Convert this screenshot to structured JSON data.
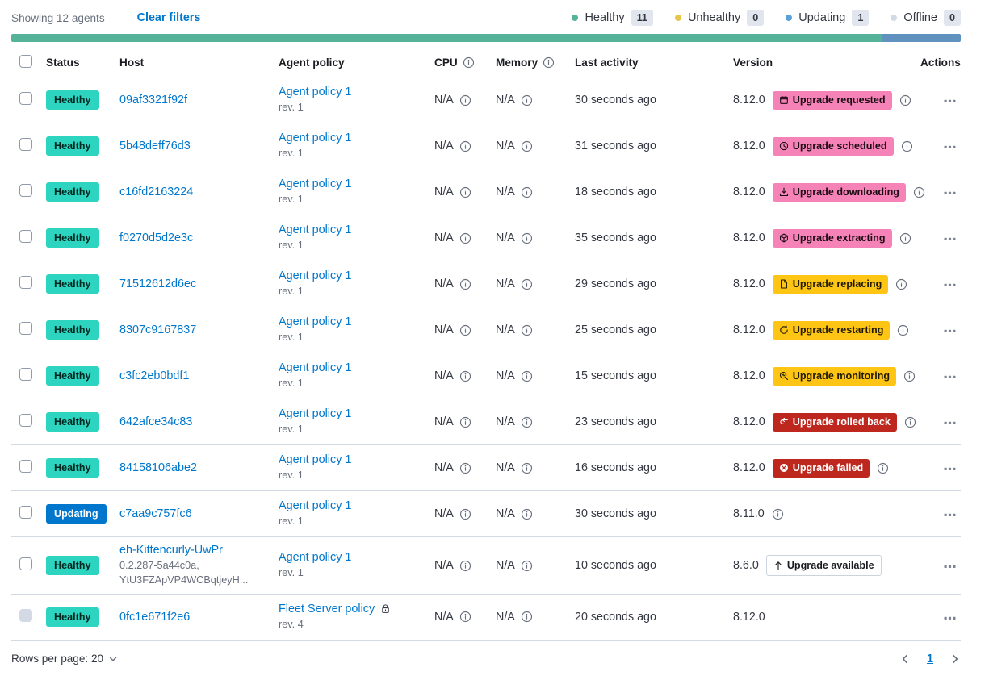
{
  "header": {
    "showing_text": "Showing 12 agents",
    "clear_filters_label": "Clear filters",
    "legend": [
      {
        "label": "Healthy",
        "count": "11",
        "color": "#54B399"
      },
      {
        "label": "Unhealthy",
        "count": "0",
        "color": "#E7C44C"
      },
      {
        "label": "Updating",
        "count": "1",
        "color": "#5BA0D8"
      },
      {
        "label": "Offline",
        "count": "0",
        "color": "#D3DAE6"
      }
    ]
  },
  "status_bar": {
    "segments": [
      {
        "name": "healthy",
        "color": "#54B399",
        "percent": 91.7
      },
      {
        "name": "updating",
        "color": "#6092C0",
        "percent": 8.3
      }
    ]
  },
  "table": {
    "columns": [
      "Status",
      "Host",
      "Agent policy",
      "CPU",
      "Memory",
      "Last activity",
      "Version",
      "Actions"
    ],
    "rows": [
      {
        "status": "Healthy",
        "status_type": "healthy",
        "host": "09af3321f92f",
        "policy": "Agent policy 1",
        "revision": "rev. 1",
        "cpu": "N/A",
        "memory": "N/A",
        "last_activity": "30 seconds ago",
        "version": "8.12.0",
        "upgrade_badge": {
          "label": "Upgrade requested",
          "style": "pink",
          "icon": "calendar"
        },
        "version_info": true
      },
      {
        "status": "Healthy",
        "status_type": "healthy",
        "host": "5b48deff76d3",
        "policy": "Agent policy 1",
        "revision": "rev. 1",
        "cpu": "N/A",
        "memory": "N/A",
        "last_activity": "31 seconds ago",
        "version": "8.12.0",
        "upgrade_badge": {
          "label": "Upgrade scheduled",
          "style": "pink",
          "icon": "clock"
        },
        "version_info": true
      },
      {
        "status": "Healthy",
        "status_type": "healthy",
        "host": "c16fd2163224",
        "policy": "Agent policy 1",
        "revision": "rev. 1",
        "cpu": "N/A",
        "memory": "N/A",
        "last_activity": "18 seconds ago",
        "version": "8.12.0",
        "upgrade_badge": {
          "label": "Upgrade downloading",
          "style": "pink",
          "icon": "download"
        },
        "version_info": true
      },
      {
        "status": "Healthy",
        "status_type": "healthy",
        "host": "f0270d5d2e3c",
        "policy": "Agent policy 1",
        "revision": "rev. 1",
        "cpu": "N/A",
        "memory": "N/A",
        "last_activity": "35 seconds ago",
        "version": "8.12.0",
        "upgrade_badge": {
          "label": "Upgrade extracting",
          "style": "pink",
          "icon": "package"
        },
        "version_info": true
      },
      {
        "status": "Healthy",
        "status_type": "healthy",
        "host": "71512612d6ec",
        "policy": "Agent policy 1",
        "revision": "rev. 1",
        "cpu": "N/A",
        "memory": "N/A",
        "last_activity": "29 seconds ago",
        "version": "8.12.0",
        "upgrade_badge": {
          "label": "Upgrade replacing",
          "style": "yellow",
          "icon": "document"
        },
        "version_info": true
      },
      {
        "status": "Healthy",
        "status_type": "healthy",
        "host": "8307c9167837",
        "policy": "Agent policy 1",
        "revision": "rev. 1",
        "cpu": "N/A",
        "memory": "N/A",
        "last_activity": "25 seconds ago",
        "version": "8.12.0",
        "upgrade_badge": {
          "label": "Upgrade restarting",
          "style": "yellow",
          "icon": "refresh"
        },
        "version_info": true
      },
      {
        "status": "Healthy",
        "status_type": "healthy",
        "host": "c3fc2eb0bdf1",
        "policy": "Agent policy 1",
        "revision": "rev. 1",
        "cpu": "N/A",
        "memory": "N/A",
        "last_activity": "15 seconds ago",
        "version": "8.12.0",
        "upgrade_badge": {
          "label": "Upgrade monitoring",
          "style": "yellow",
          "icon": "inspect"
        },
        "version_info": true
      },
      {
        "status": "Healthy",
        "status_type": "healthy",
        "host": "642afce34c83",
        "policy": "Agent policy 1",
        "revision": "rev. 1",
        "cpu": "N/A",
        "memory": "N/A",
        "last_activity": "23 seconds ago",
        "version": "8.12.0",
        "upgrade_badge": {
          "label": "Upgrade rolled back",
          "style": "red",
          "icon": "return"
        },
        "version_info": true
      },
      {
        "status": "Healthy",
        "status_type": "healthy",
        "host": "84158106abe2",
        "policy": "Agent policy 1",
        "revision": "rev. 1",
        "cpu": "N/A",
        "memory": "N/A",
        "last_activity": "16 seconds ago",
        "version": "8.12.0",
        "upgrade_badge": {
          "label": "Upgrade failed",
          "style": "red",
          "icon": "xcircle"
        },
        "version_info": true
      },
      {
        "status": "Updating",
        "status_type": "updating",
        "host": "c7aa9c757fc6",
        "policy": "Agent policy 1",
        "revision": "rev. 1",
        "cpu": "N/A",
        "memory": "N/A",
        "last_activity": "30 seconds ago",
        "version": "8.11.0",
        "upgrade_badge": null,
        "version_info": true
      },
      {
        "status": "Healthy",
        "status_type": "healthy",
        "host": "eh-Kittencurly-UwPr",
        "host_sub": [
          "0.2.287-5a44c0a,",
          "YtU3FZApVP4WCBqtjeyH..."
        ],
        "policy": "Agent policy 1",
        "revision": "rev. 1",
        "cpu": "N/A",
        "memory": "N/A",
        "last_activity": "10 seconds ago",
        "version": "8.6.0",
        "upgrade_badge": {
          "label": "Upgrade available",
          "style": "hollow",
          "icon": "uparrow"
        },
        "version_info": false
      },
      {
        "status": "Healthy",
        "status_type": "healthy",
        "host": "0fc1e671f2e6",
        "policy": "Fleet Server policy",
        "policy_locked": true,
        "revision": "rev. 4",
        "cpu": "N/A",
        "memory": "N/A",
        "last_activity": "20 seconds ago",
        "version": "8.12.0",
        "upgrade_badge": null,
        "version_info": false,
        "checkbox_disabled": true
      }
    ]
  },
  "footer": {
    "rows_per_page_label": "Rows per page: 20",
    "page": "1"
  },
  "colors": {
    "link": "#0077CC",
    "text": "#343741",
    "subdued": "#69707D",
    "border": "#D3DAE6",
    "healthy_badge": "#2DD4C0",
    "updating_badge": "#0077CC",
    "accent_pink": "#F583B7",
    "warning_yellow": "#FEC514",
    "danger_red": "#BD271E",
    "count_badge_bg": "#E0E5EE"
  }
}
